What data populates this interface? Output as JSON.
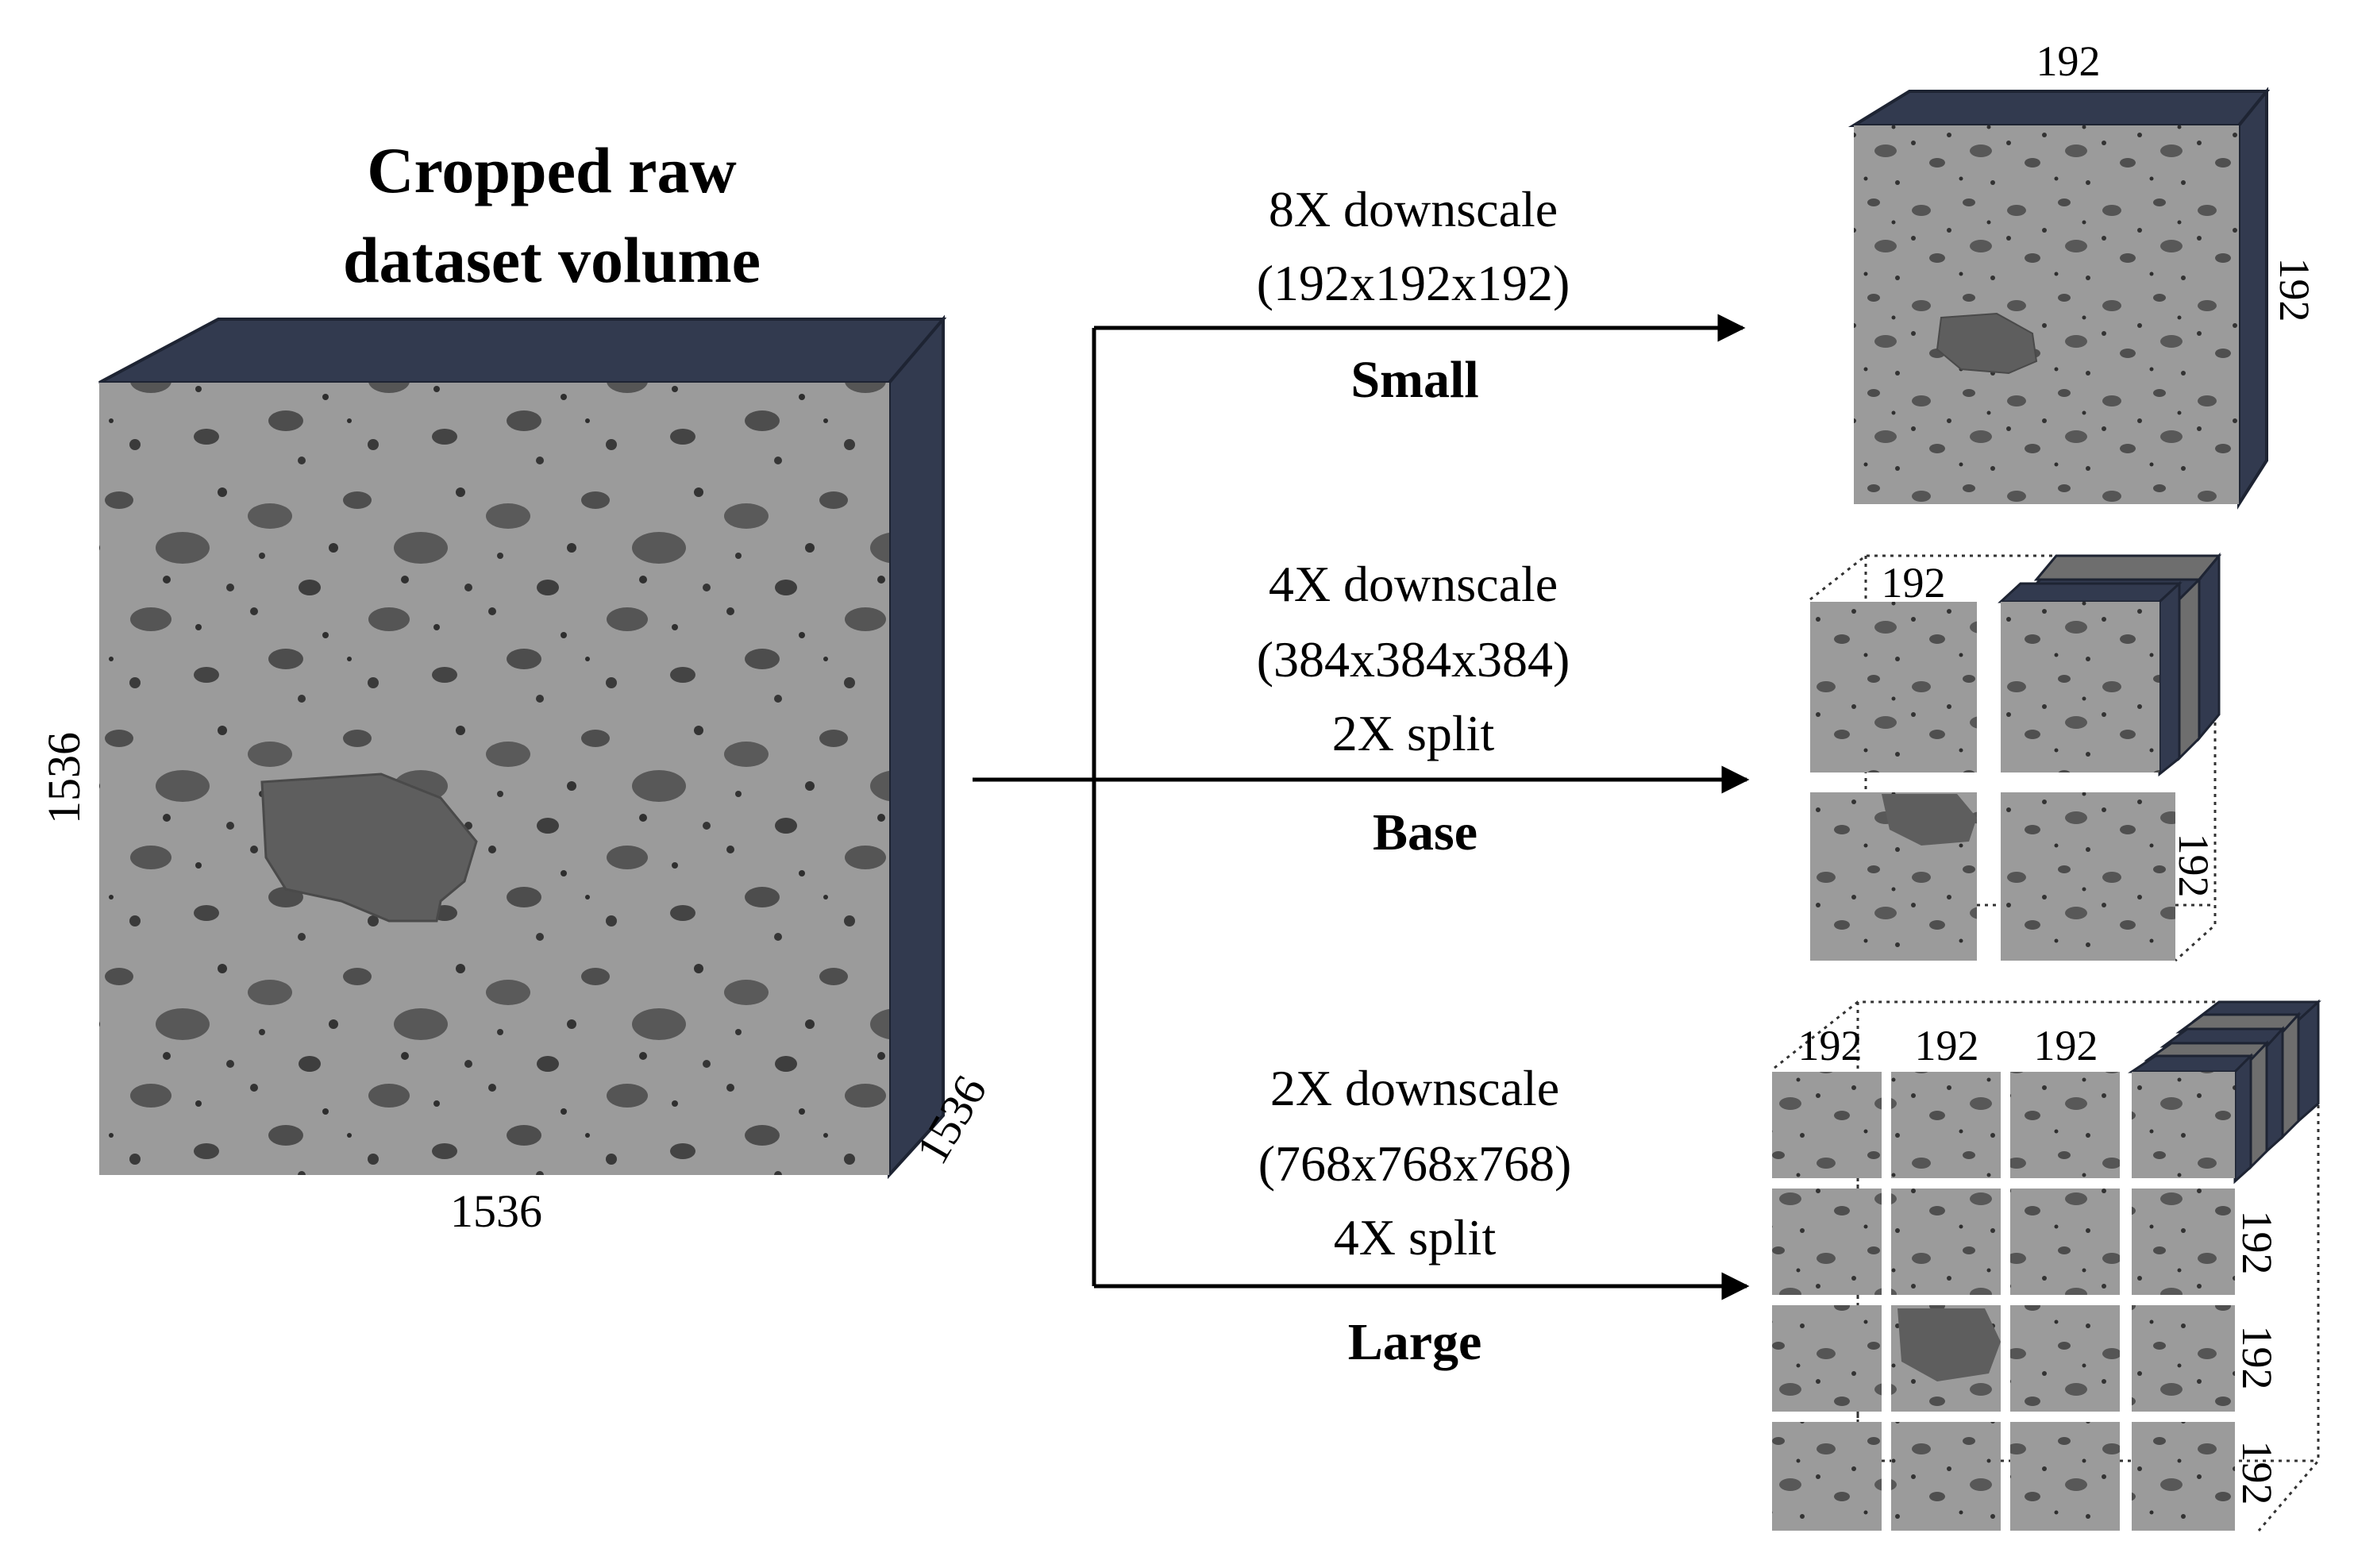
{
  "main_title": [
    "Cropped raw",
    "dataset volume"
  ],
  "raw_volume": {
    "dim_bottom": "1536",
    "dim_left": "1536",
    "dim_depth": "1536"
  },
  "branches": [
    {
      "lines": [
        "8X downscale",
        "(192x192x192)"
      ],
      "name": "Small"
    },
    {
      "lines": [
        "4X downscale",
        "(384x384x384)",
        "2X split"
      ],
      "name": "Base"
    },
    {
      "lines": [
        "2X downscale",
        "(768x768x768)",
        "4X split"
      ],
      "name": "Large"
    }
  ],
  "small_cube": {
    "top": "192",
    "side": "192"
  },
  "base_cube": {
    "top": "192",
    "side": "192"
  },
  "large_cube": {
    "top": [
      "192",
      "192",
      "192"
    ],
    "side": [
      "192",
      "192",
      "192"
    ]
  },
  "colors": {
    "face_dark": "#323a4f",
    "slab_gray": "#6e6e6e",
    "tile_bg": "#9a9a9a",
    "tile_blob": "#4a4a4a"
  }
}
